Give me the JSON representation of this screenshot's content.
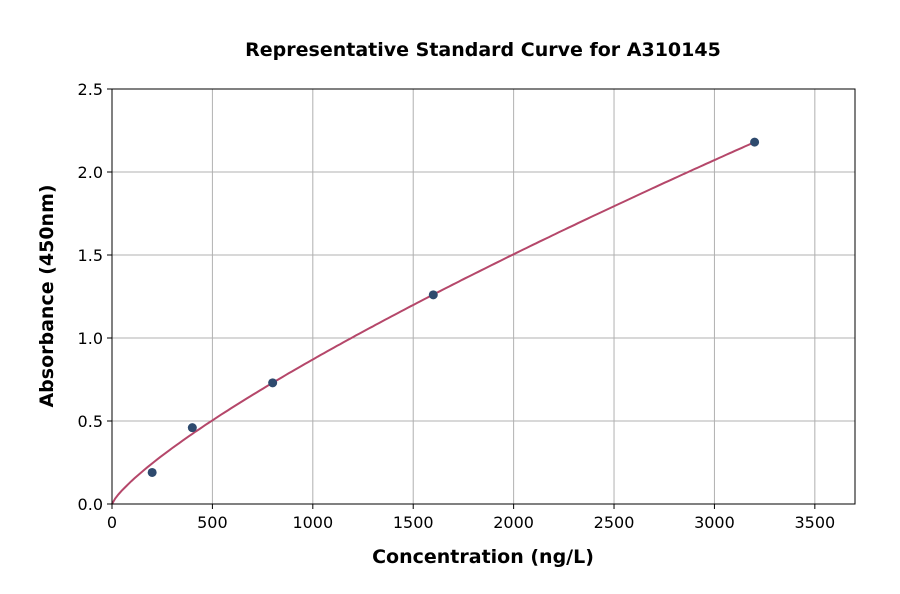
{
  "chart_data": {
    "type": "scatter",
    "title": "Representative Standard Curve for A310145",
    "xlabel": "Concentration (ng/L)",
    "ylabel": "Absorbance (450nm)",
    "xlim": [
      0,
      3700
    ],
    "ylim": [
      0,
      2.5
    ],
    "xticks": [
      0,
      500,
      1000,
      1500,
      2000,
      2500,
      3000,
      3500
    ],
    "yticks": [
      0.0,
      0.5,
      1.0,
      1.5,
      2.0,
      2.5
    ],
    "xtick_labels": [
      "0",
      "500",
      "1000",
      "1500",
      "2000",
      "2500",
      "3000",
      "3500"
    ],
    "ytick_labels": [
      "0.0",
      "0.5",
      "1.0",
      "1.5",
      "2.0",
      "2.5"
    ],
    "grid": true,
    "points": {
      "x": [
        200,
        400,
        800,
        1600,
        3200
      ],
      "y": [
        0.19,
        0.46,
        0.73,
        1.26,
        2.18
      ],
      "color": "#2e4a6e"
    },
    "fit_curve": {
      "model": "power",
      "a": 0.00374,
      "b": 0.789,
      "x_range": [
        0,
        3200
      ],
      "color": "#b5476a"
    }
  }
}
